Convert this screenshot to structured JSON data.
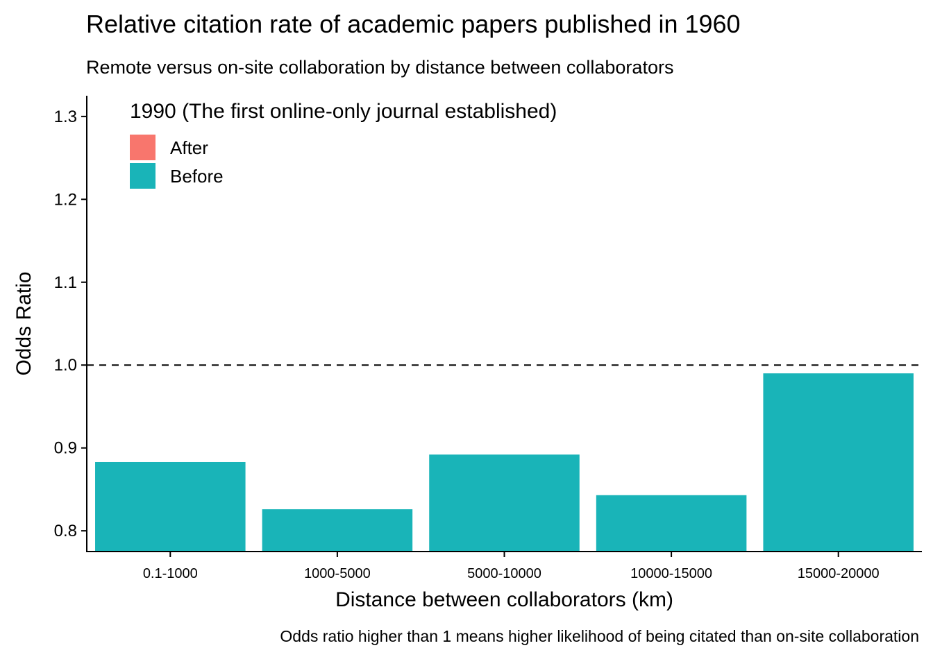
{
  "title": "Relative citation rate of academic papers published in 1960",
  "subtitle": "Remote versus on-site collaboration by distance between collaborators",
  "caption": "Odds ratio higher than 1 means higher likelihood of being citated than on-site collaboration",
  "chart_data": {
    "type": "bar",
    "xlabel": "Distance between collaborators (km)",
    "ylabel": "Odds Ratio",
    "categories": [
      "0.1-1000",
      "1000-5000",
      "5000-10000",
      "10000-15000",
      "15000-20000"
    ],
    "series": [
      {
        "name": "After",
        "color": "#F8766D",
        "values": [
          null,
          null,
          null,
          null,
          null
        ]
      },
      {
        "name": "Before",
        "color": "#19B4B8",
        "values": [
          0.883,
          0.826,
          0.892,
          0.843,
          0.99
        ]
      }
    ],
    "ylim": [
      0.775,
      1.325
    ],
    "yticks": [
      0.8,
      0.9,
      1.0,
      1.1,
      1.2,
      1.3
    ],
    "ytick_labels": [
      "0.8",
      "0.9",
      "1.0",
      "1.1",
      "1.2",
      "1.3"
    ],
    "reference_line": {
      "y": 1.0,
      "style": "dashed"
    },
    "legend": {
      "title": "1990 (The first online-only journal established)",
      "position": "top-left",
      "entries": [
        "After",
        "Before"
      ]
    },
    "grid": false
  }
}
